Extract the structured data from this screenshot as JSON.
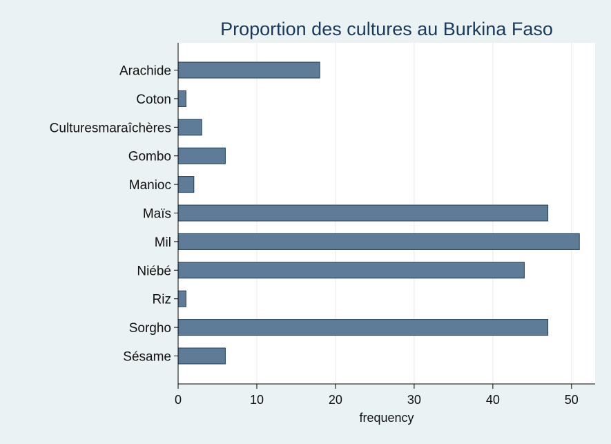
{
  "chart_data": {
    "type": "bar",
    "orientation": "horizontal",
    "title": "Proportion des cultures au Burkina Faso",
    "xlabel": "frequency",
    "ylabel": "",
    "categories": [
      "Arachide",
      "Coton",
      "Culturesmaraîchères",
      "Gombo",
      "Manioc",
      "Maïs",
      "Mil",
      "Niébé",
      "Riz",
      "Sorgho",
      "Sésame"
    ],
    "values": [
      18,
      1,
      3,
      6,
      2,
      47,
      51,
      44,
      1,
      47,
      6
    ],
    "xlim": [
      0,
      53
    ],
    "xticks": [
      0,
      10,
      20,
      30,
      40,
      50
    ],
    "grid": true,
    "colors": {
      "bar_fill": "#5e7b97",
      "bar_stroke": "#1f3d56",
      "plot_bg": "#ffffff",
      "page_bg": "#eaf2f3",
      "title": "#1a3a5c"
    }
  }
}
